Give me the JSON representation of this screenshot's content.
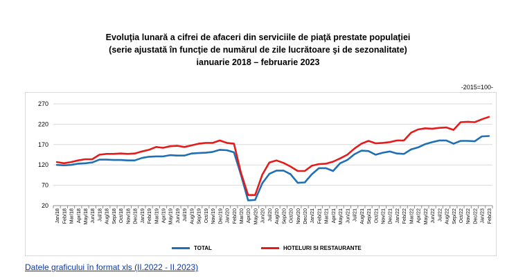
{
  "page": {
    "title_lines": [
      "Evoluţia lunară a cifrei de afaceri din serviciile de piaţă prestate populaţiei",
      "(serie ajustată în funcţie de numărul de zile lucrătoare şi de sezonalitate)",
      "ianuarie 2018 – februarie 2023"
    ],
    "unit": "-2015=100-",
    "link": "Datele graficului în format xls (II.2022 - II.2023)"
  },
  "chart_data": {
    "type": "line",
    "title": "Evoluţia lunară a cifrei de afaceri din serviciile de piaţă prestate populaţiei (serie ajustată în funcţie de numărul de zile lucrătoare şi de sezonalitate) ianuarie 2018 – februarie 2023",
    "ylim": [
      20,
      270
    ],
    "yticks": [
      20,
      70,
      120,
      170,
      220,
      270
    ],
    "grid": "horizontal",
    "legend": "bottom",
    "categories": [
      "Jan/18",
      "Feb/18",
      "Mar/18",
      "Apr/18",
      "May/18",
      "Jun/18",
      "Jul/18",
      "Aug/18",
      "Sep/18",
      "Oct/18",
      "Nov/18",
      "Dec/18",
      "Jan/19",
      "Feb/19",
      "Mar/19",
      "Apr/19",
      "May/19",
      "Jun/19",
      "Jul/19",
      "Aug/19",
      "Sep/19",
      "Oct/19",
      "Nov/19",
      "Dec/19",
      "Jan/20",
      "Feb/20",
      "Mar/20",
      "Apr/20",
      "May/20",
      "Jun/20",
      "Jul/20",
      "Aug/20",
      "Sep/20",
      "Oct/20",
      "Nov/20",
      "Dec/20",
      "Jan/21",
      "Feb/21",
      "Mar/21",
      "Apr/21",
      "May/21",
      "Jun/21",
      "Jul/21",
      "Aug/21",
      "Sep/21",
      "Oct/21",
      "Nov/21",
      "Dec/21",
      "Jan/22",
      "Feb/22",
      "Mar/22",
      "Apr/22",
      "May/22",
      "Jun/22",
      "Jul/22",
      "Aug/22",
      "Sep/22",
      "Oct/22",
      "Nov/22",
      "Dec/22",
      "Jan/23",
      "Feb/23"
    ],
    "series": [
      {
        "name": "TOTAL",
        "color": "#1f6fb4",
        "values": [
          120,
          119,
          120,
          123,
          124,
          126,
          133,
          133,
          132,
          132,
          131,
          131,
          137,
          140,
          141,
          141,
          144,
          143,
          143,
          148,
          149,
          150,
          152,
          157,
          156,
          151,
          95,
          33,
          34,
          75,
          98,
          106,
          106,
          97,
          76,
          77,
          97,
          112,
          112,
          105,
          124,
          132,
          146,
          155,
          154,
          145,
          150,
          153,
          148,
          147,
          158,
          163,
          171,
          176,
          180,
          180,
          172,
          179,
          179,
          178,
          190,
          191
        ]
      },
      {
        "name": "HOTELURI SI RESTAURANTE",
        "color": "#e41b1b",
        "values": [
          127,
          124,
          127,
          131,
          134,
          134,
          145,
          147,
          147,
          148,
          147,
          148,
          153,
          157,
          164,
          162,
          166,
          167,
          164,
          168,
          172,
          174,
          174,
          180,
          174,
          172,
          100,
          46,
          46,
          96,
          126,
          131,
          125,
          116,
          105,
          105,
          118,
          122,
          123,
          128,
          136,
          145,
          160,
          172,
          179,
          173,
          174,
          176,
          180,
          180,
          199,
          207,
          210,
          209,
          211,
          212,
          206,
          225,
          226,
          225,
          232,
          238
        ]
      }
    ]
  }
}
